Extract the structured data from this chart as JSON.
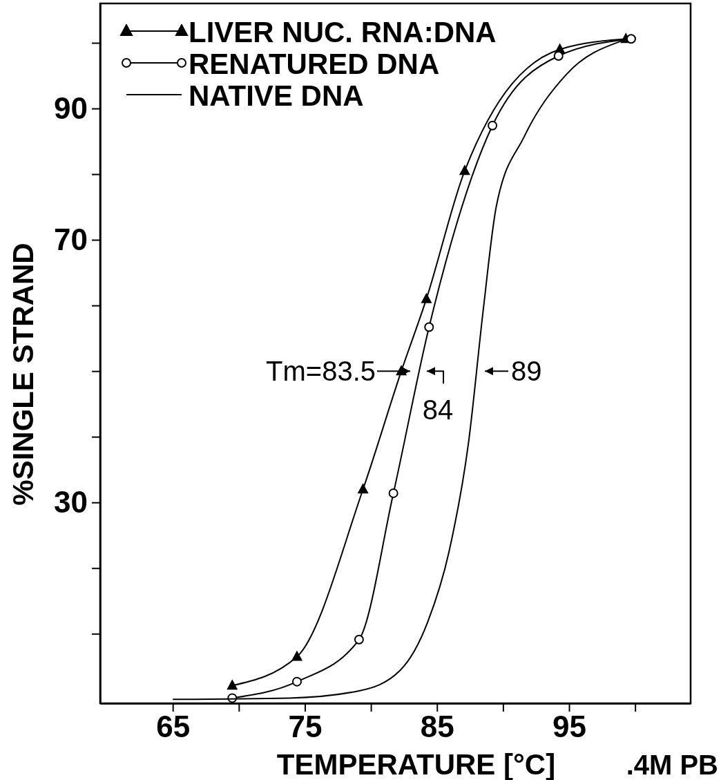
{
  "chart_data": {
    "type": "line",
    "xlabel": "TEMPERATURE [°C]",
    "ylabel": "%SINGLE STRAND",
    "xlim": [
      59.5,
      104.2
    ],
    "ylim": [
      -0.6,
      106
    ],
    "xticks": [
      65,
      {
        "value": 70,
        "label": null
      },
      75,
      {
        "value": 80,
        "label": null
      },
      85,
      {
        "value": 90,
        "label": null
      },
      95,
      {
        "value": 100,
        "label": null
      }
    ],
    "yticks": [
      {
        "value": 10,
        "label": null
      },
      {
        "value": 20,
        "label": null
      },
      30,
      {
        "value": 40,
        "label": null
      },
      {
        "value": 50,
        "label": null
      },
      {
        "value": 60,
        "label": null
      },
      70,
      {
        "value": 80,
        "label": null
      },
      90,
      {
        "value": 100,
        "label": null
      }
    ],
    "legend": "top left",
    "series": [
      {
        "name": "LIVER NUC. RNA:DNA",
        "color": "#000000",
        "marker": "triangle",
        "x": [
          69.5,
          74.4,
          79.4,
          82.3,
          84.2,
          87.1,
          94.3,
          99.3
        ],
        "values": [
          2.1,
          6.5,
          32,
          50,
          61,
          80.5,
          99,
          100.6
        ]
      },
      {
        "name": "RENATURED DNA",
        "color": "#000000",
        "marker": "circle",
        "x": [
          69.5,
          74.4,
          79.1,
          81.7,
          84.4,
          89.2,
          94.2,
          99.7
        ],
        "values": [
          0.2,
          2.7,
          9.1,
          31.4,
          56.7,
          87.4,
          98,
          100.6
        ]
      },
      {
        "name": "NATIVE DNA",
        "color": "#000000",
        "marker": "none",
        "x": [
          65,
          73.8,
          79.1,
          82.2,
          84.3,
          85.9,
          87.4,
          88.5,
          89.5,
          91.6,
          94.8,
          99
        ],
        "values": [
          0,
          0.2,
          1.3,
          4.4,
          11.8,
          22.4,
          39.3,
          59.3,
          75.2,
          85.7,
          95.2,
          100.3
        ]
      }
    ],
    "annotations": [
      {
        "text": "Tm=83.5",
        "x": 83.5,
        "y": 50
      },
      "84",
      "89",
      ".4M PB"
    ]
  }
}
